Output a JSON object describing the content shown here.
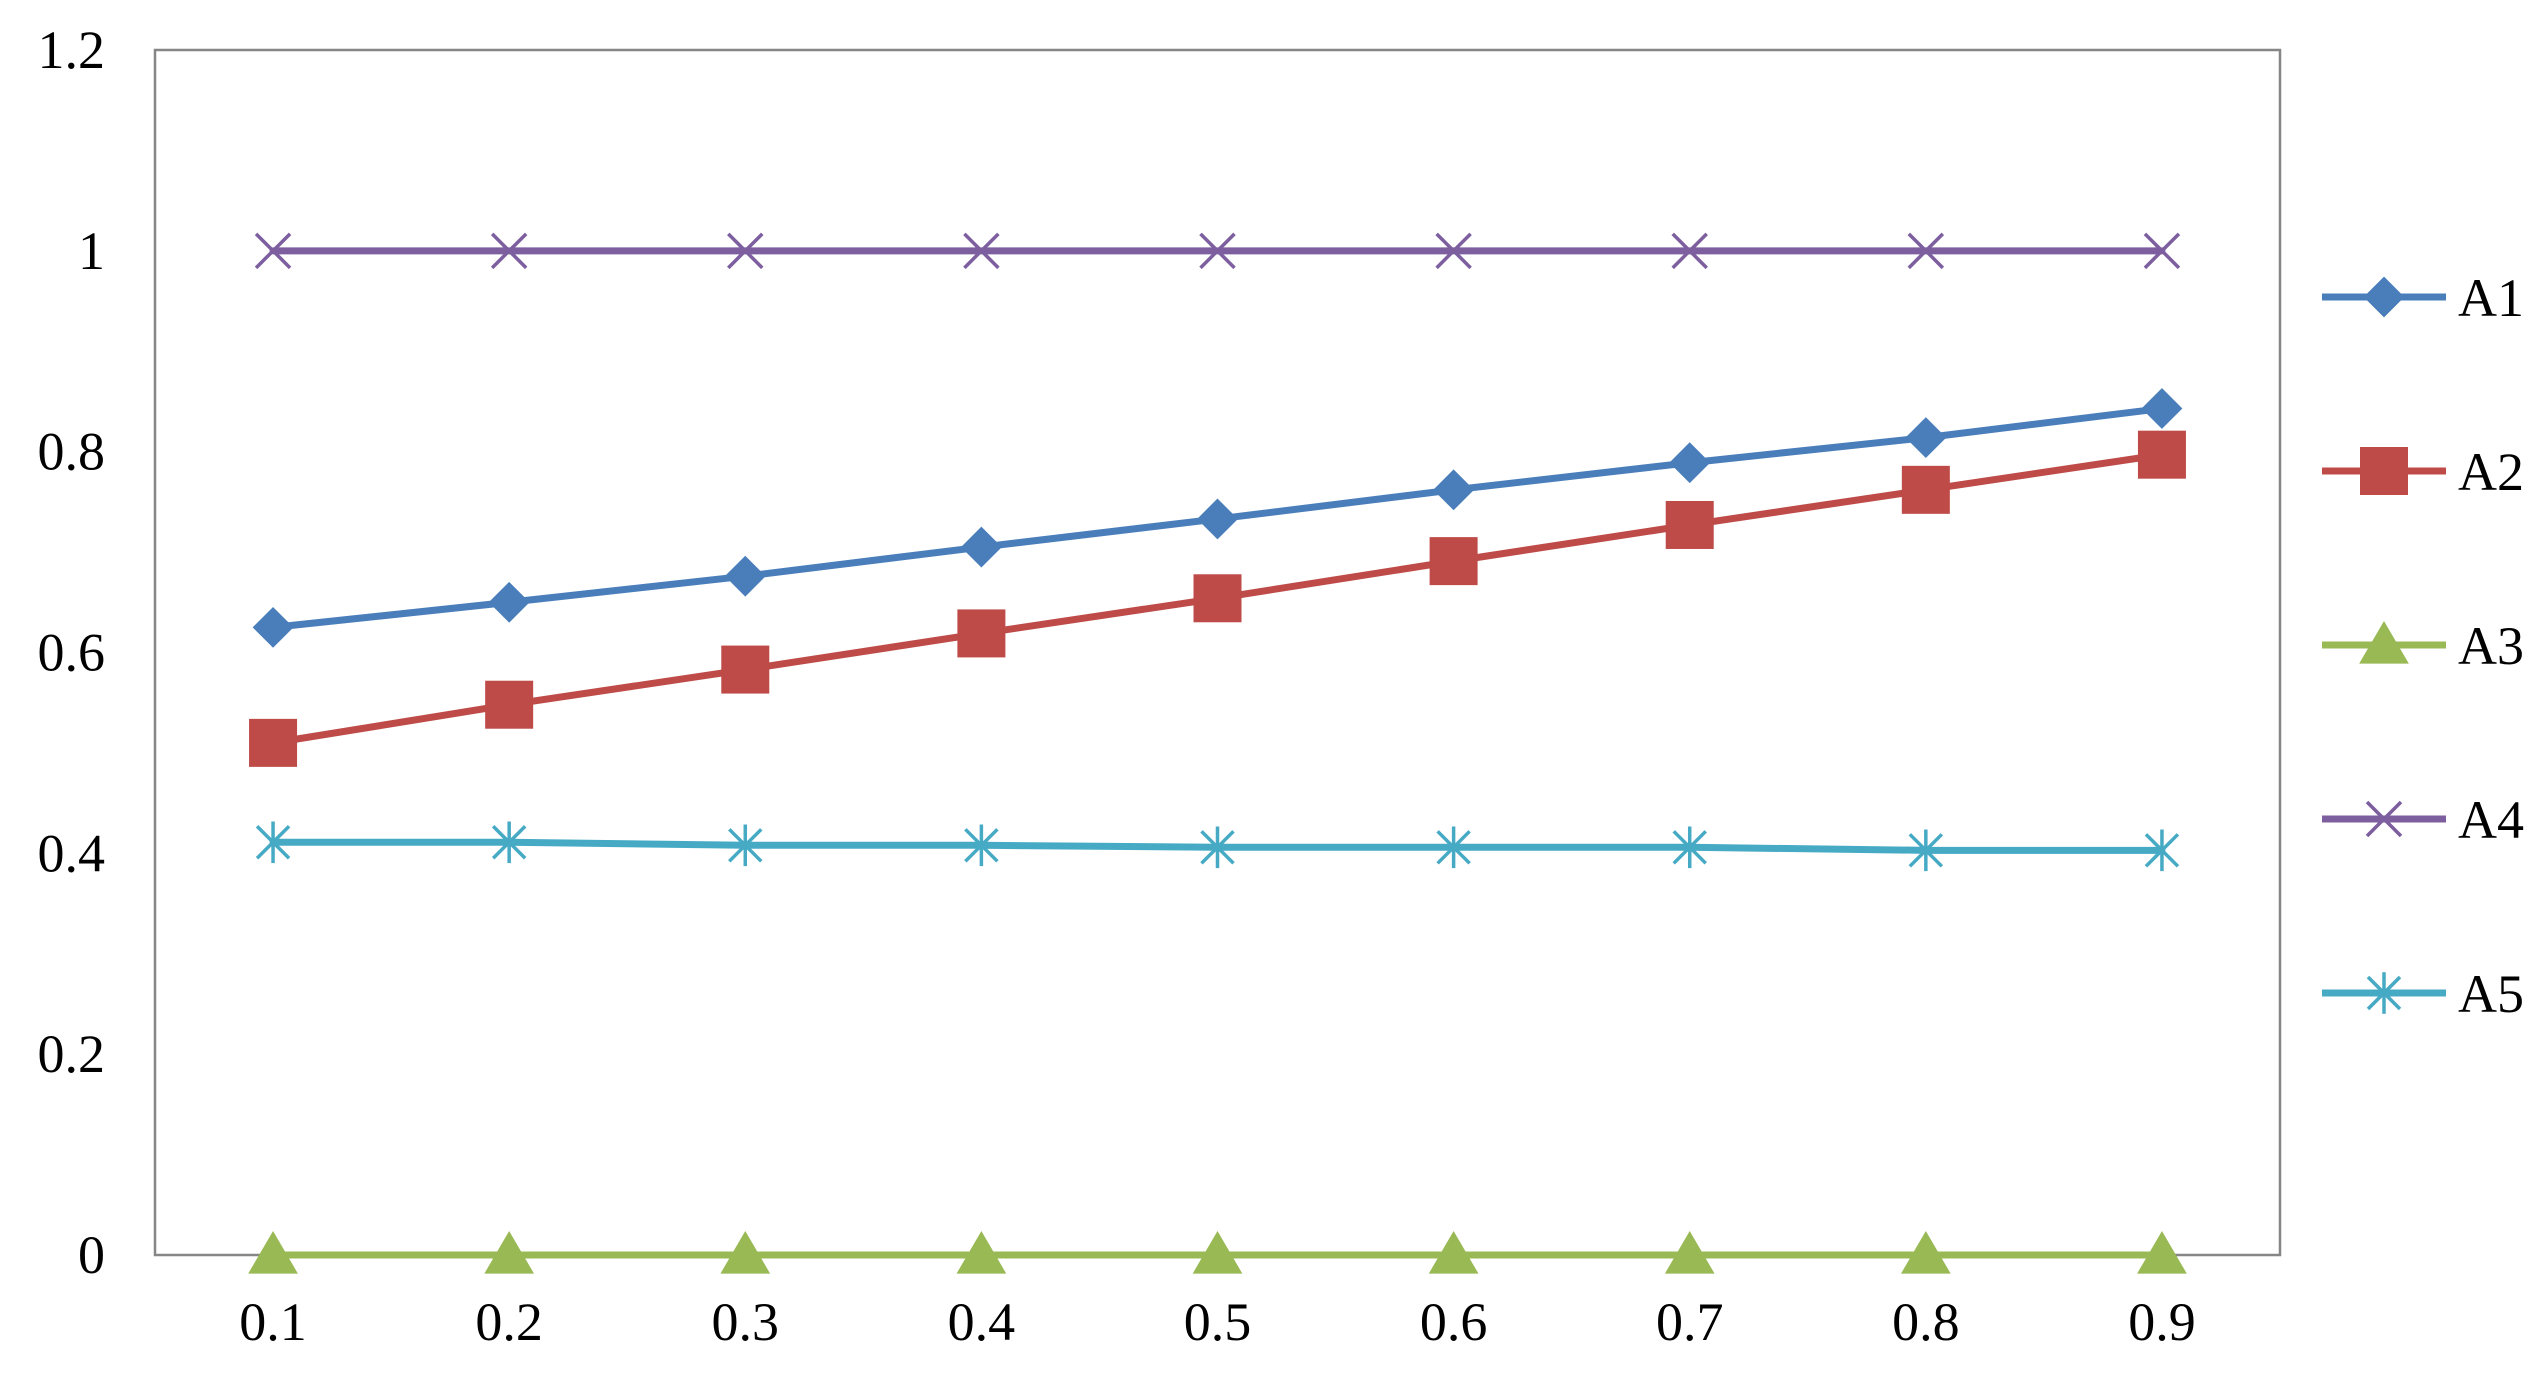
{
  "chart_data": {
    "type": "line",
    "title": "",
    "xlabel": "",
    "ylabel": "",
    "categories": [
      "0.1",
      "0.2",
      "0.3",
      "0.4",
      "0.5",
      "0.6",
      "0.7",
      "0.8",
      "0.9"
    ],
    "yticks": [
      "0",
      "0.2",
      "0.4",
      "0.6",
      "0.8",
      "1",
      "1.2"
    ],
    "ylim": [
      0,
      1.2
    ],
    "grid": false,
    "legend_position": "right",
    "series": [
      {
        "name": "A1",
        "color": "#4a7ebb",
        "marker": "diamond",
        "values": [
          0.625,
          0.65,
          0.676,
          0.705,
          0.733,
          0.762,
          0.789,
          0.814,
          0.843
        ]
      },
      {
        "name": "A2",
        "color": "#be4b48",
        "marker": "square",
        "values": [
          0.51,
          0.548,
          0.583,
          0.619,
          0.654,
          0.691,
          0.727,
          0.762,
          0.797
        ]
      },
      {
        "name": "A3",
        "color": "#98b954",
        "marker": "triangle",
        "values": [
          0,
          0,
          0,
          0,
          0,
          0,
          0,
          0,
          0
        ]
      },
      {
        "name": "A4",
        "color": "#7d5fa0",
        "marker": "x",
        "values": [
          1,
          1,
          1,
          1,
          1,
          1,
          1,
          1,
          1
        ]
      },
      {
        "name": "A5",
        "color": "#46aac5",
        "marker": "star",
        "values": [
          0.411,
          0.411,
          0.408,
          0.408,
          0.406,
          0.406,
          0.406,
          0.403,
          0.403
        ]
      }
    ]
  }
}
